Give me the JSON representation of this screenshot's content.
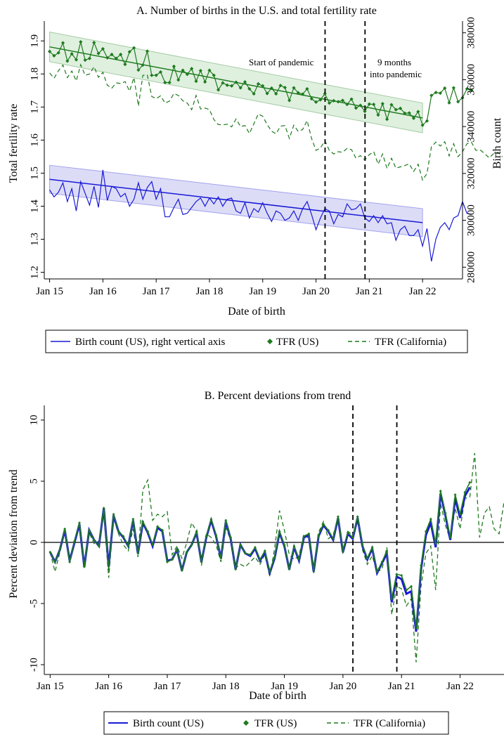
{
  "chart_data": [
    {
      "type": "line",
      "title": "A. Number of births in the U.S. and total fertility rate",
      "xlabel": "Date of birth",
      "ylabel": "Total fertility rate",
      "ylabel_right": "Birth count",
      "x_ticks": [
        "Jan 15",
        "Jan 16",
        "Jan 17",
        "Jan 18",
        "Jan 19",
        "Jan 20",
        "Jan 21",
        "Jan 22"
      ],
      "x_range": [
        -0.1,
        7.75
      ],
      "y_ticks": [
        "1.2",
        "1.3",
        "1.4",
        "1.5",
        "1.6",
        "1.7",
        "1.8",
        "1.9"
      ],
      "ylim": [
        1.18,
        1.96
      ],
      "y2_ticks": [
        "280000",
        "300000",
        "320000",
        "340000",
        "360000",
        "380000"
      ],
      "y2lim": [
        275000,
        385000
      ],
      "grid": false,
      "legend_position": "bottom",
      "annotations": [
        {
          "text": "Start of pandemic",
          "x": 5.17
        },
        {
          "text": "9 months",
          "x": 5.92
        },
        {
          "text": "into pandemic",
          "x": 5.92
        }
      ],
      "vlines": [
        5.17,
        5.92
      ],
      "series": [
        {
          "name": "Birth count (US), right vertical axis",
          "axis": "right",
          "color": "#1a1ad6",
          "x_start": 0,
          "x_step": 0.08333,
          "values": [
            313000,
            310000,
            312000,
            316000,
            308000,
            313500,
            304000,
            316500,
            311500,
            306500,
            314500,
            305500,
            321500,
            308500,
            314500,
            313500,
            310000,
            311500,
            306000,
            309000,
            316000,
            309000,
            314000,
            316500,
            309000,
            313500,
            301500,
            301500,
            305500,
            309000,
            302500,
            303000,
            305500,
            308000,
            309500,
            306000,
            309500,
            307000,
            310000,
            306000,
            309000,
            309500,
            304000,
            303000,
            307500,
            301000,
            305000,
            303500,
            307500,
            303000,
            299500,
            304000,
            303000,
            300000,
            301000,
            304000,
            300000,
            305000,
            308000,
            302500,
            296000,
            301000,
            305000,
            304000,
            298500,
            302500,
            301500,
            307000,
            304500,
            305000,
            307000,
            301000,
            299500,
            302000,
            299000,
            302000,
            298500,
            299000,
            291500,
            296000,
            297500,
            293500,
            293500,
            296000,
            289000,
            296500,
            282500,
            292000,
            297000,
            299000,
            296000,
            301000,
            302000,
            308000,
            303000,
            302500
          ]
        },
        {
          "name": "TFR (US)",
          "axis": "left",
          "color": "#1f7a1f",
          "marker": "diamond",
          "x_start": 0,
          "x_step": 0.08333,
          "values": [
            1.868,
            1.855,
            1.864,
            1.894,
            1.839,
            1.861,
            1.843,
            1.897,
            1.842,
            1.847,
            1.895,
            1.862,
            1.876,
            1.849,
            1.859,
            1.847,
            1.859,
            1.829,
            1.867,
            1.879,
            1.812,
            1.827,
            1.869,
            1.796,
            1.796,
            1.806,
            1.774,
            1.774,
            1.823,
            1.782,
            1.811,
            1.799,
            1.816,
            1.778,
            1.81,
            1.776,
            1.811,
            1.796,
            1.752,
            1.773,
            1.766,
            1.764,
            1.775,
            1.758,
            1.776,
            1.755,
            1.74,
            1.77,
            1.764,
            1.741,
            1.757,
            1.74,
            1.765,
            1.759,
            1.72,
            1.758,
            1.743,
            1.739,
            1.755,
            1.725,
            1.715,
            1.722,
            1.74,
            1.712,
            1.719,
            1.716,
            1.72,
            1.708,
            1.724,
            1.697,
            1.705,
            1.687,
            1.709,
            1.708,
            1.676,
            1.71,
            1.663,
            1.707,
            1.692,
            1.696,
            1.681,
            1.682,
            1.666,
            1.686,
            1.645,
            1.658,
            1.735,
            1.744,
            1.742,
            1.757,
            1.713,
            1.758,
            1.716,
            1.728,
            1.755,
            1.75
          ]
        },
        {
          "name": "TFR (California)",
          "axis": "left",
          "color": "#1f7a1f",
          "dash": "6,4",
          "x_start": 0,
          "x_step": 0.08333,
          "values": [
            1.803,
            1.787,
            1.81,
            1.827,
            1.789,
            1.809,
            1.779,
            1.828,
            1.796,
            1.8,
            1.822,
            1.79,
            1.805,
            1.766,
            1.757,
            1.773,
            1.771,
            1.777,
            1.748,
            1.789,
            1.703,
            1.796,
            1.797,
            1.732,
            1.725,
            1.734,
            1.712,
            1.718,
            1.741,
            1.735,
            1.719,
            1.712,
            1.692,
            1.735,
            1.694,
            1.697,
            1.692,
            1.662,
            1.647,
            1.646,
            1.648,
            1.64,
            1.664,
            1.641,
            1.644,
            1.62,
            1.649,
            1.679,
            1.672,
            1.647,
            1.627,
            1.619,
            1.642,
            1.644,
            1.605,
            1.645,
            1.626,
            1.632,
            1.659,
            1.605,
            1.569,
            1.576,
            1.598,
            1.569,
            1.558,
            1.565,
            1.563,
            1.575,
            1.571,
            1.545,
            1.553,
            1.54,
            1.556,
            1.565,
            1.527,
            1.558,
            1.514,
            1.545,
            1.515,
            1.519,
            1.523,
            1.528,
            1.505,
            1.527,
            1.479,
            1.499,
            1.58,
            1.594,
            1.582,
            1.595,
            1.552,
            1.589,
            1.55,
            1.565,
            1.589,
            1.594,
            1.569,
            1.57,
            1.559,
            1.546,
            1.559,
            1.563,
            1.549
          ]
        }
      ],
      "trend_lines": [
        {
          "name": "US TFR trend",
          "x": [
            0,
            7.0
          ],
          "y": [
            1.882,
            1.667
          ],
          "band": 0.045,
          "color": "#1f7a1f",
          "band_fill": "#dff0df"
        },
        {
          "name": "Birth count trend",
          "x": [
            0,
            7.0
          ],
          "y": [
            317500,
            299000
          ],
          "band": 6000,
          "color": "#1a1ad6",
          "band_fill": "#dcdcf7"
        }
      ]
    },
    {
      "type": "line",
      "title": "B. Percent deviations from trend",
      "xlabel": "Date of birth",
      "ylabel": "Percent deviation from trend",
      "x_ticks": [
        "Jan 15",
        "Jan 16",
        "Jan 17",
        "Jan 18",
        "Jan 19",
        "Jan 20",
        "Jan 21",
        "Jan 22"
      ],
      "x_range": [
        -0.1,
        7.75
      ],
      "y_ticks": [
        "-10",
        "-5",
        "0",
        "5",
        "10"
      ],
      "ylim": [
        -10.8,
        11.2
      ],
      "grid": false,
      "legend_position": "bottom",
      "hline": 0,
      "vlines": [
        5.17,
        5.92
      ],
      "series": [
        {
          "name": "Birth count (US)",
          "color": "#1a1ad6",
          "x_start": 0,
          "x_step": 0.08333,
          "values": [
            -0.8,
            -1.6,
            -0.6,
            1.0,
            -1.5,
            0.0,
            1.5,
            -2.0,
            1.0,
            0.2,
            -0.3,
            2.8,
            -2.0,
            2.2,
            0.9,
            0.4,
            -0.3,
            1.8,
            -0.9,
            1.6,
            0.8,
            -0.3,
            1.2,
            0.9,
            -1.5,
            -1.4,
            -0.6,
            -2.3,
            -0.8,
            -0.2,
            0.8,
            -1.6,
            0.4,
            1.8,
            0.5,
            -1.3,
            1.7,
            0.3,
            -2.2,
            -0.2,
            -0.9,
            -1.1,
            -0.5,
            -1.5,
            -0.8,
            -2.5,
            -1.3,
            0.8,
            -0.3,
            -2.2,
            -0.4,
            -1.5,
            0.4,
            0.6,
            -2.4,
            0.5,
            1.4,
            0.9,
            0.2,
            2.0,
            -0.8,
            0.7,
            0.3,
            2.0,
            -0.3,
            -1.4,
            -0.5,
            -2.5,
            -1.7,
            -0.9,
            -4.9,
            -2.8,
            -3.0,
            -4.2,
            -4.0,
            -7.3,
            -2.2,
            0.6,
            1.6,
            -0.4,
            4.0,
            2.2,
            0.2,
            3.6,
            2.0,
            3.8,
            4.5
          ]
        },
        {
          "name": "TFR (US)",
          "color": "#1f7a1f",
          "marker": "diamond",
          "x_start": 0,
          "x_step": 0.08333,
          "values": [
            -0.8,
            -1.6,
            -0.6,
            1.1,
            -1.6,
            0.1,
            1.6,
            -2.0,
            1.0,
            0.2,
            -0.3,
            2.8,
            -2.2,
            2.3,
            0.9,
            0.5,
            -0.3,
            1.9,
            -0.9,
            1.7,
            0.9,
            -0.2,
            1.3,
            1.0,
            -1.6,
            -1.4,
            -0.6,
            -2.3,
            -0.8,
            -0.2,
            0.9,
            -1.6,
            0.5,
            1.9,
            0.6,
            -1.3,
            1.8,
            0.4,
            -2.2,
            -0.2,
            -0.9,
            -1.0,
            -0.4,
            -1.4,
            -0.7,
            -2.4,
            -1.2,
            0.9,
            -0.2,
            -2.2,
            -0.3,
            -1.4,
            0.5,
            0.7,
            -2.3,
            0.6,
            1.5,
            1.0,
            0.3,
            2.1,
            -0.7,
            0.8,
            0.4,
            2.1,
            -0.2,
            -1.3,
            -0.4,
            -2.4,
            -1.6,
            -0.7,
            -4.6,
            -2.6,
            -2.7,
            -3.9,
            -3.6,
            -7.0,
            -1.9,
            0.9,
            1.9,
            -0.1,
            4.2,
            2.4,
            0.4,
            3.9,
            2.3,
            4.1,
            4.9
          ]
        },
        {
          "name": "TFR (California)",
          "color": "#1f7a1f",
          "dash": "6,4",
          "x_start": 0,
          "x_step": 0.08333,
          "values": [
            -0.8,
            -2.4,
            -0.8,
            0.9,
            -1.2,
            -0.2,
            1.4,
            -1.9,
            0.8,
            -0.1,
            0.1,
            2.3,
            -2.9,
            2.0,
            0.7,
            -0.2,
            -0.7,
            1.1,
            -1.2,
            4.3,
            5.1,
            1.8,
            2.3,
            2.1,
            2.5,
            -1.0,
            -0.3,
            -1.3,
            0.0,
            1.6,
            0.9,
            -1.9,
            0.7,
            0.4,
            -0.2,
            -1.6,
            1.2,
            0.2,
            -2.1,
            -1.8,
            -2.0,
            -1.6,
            -1.2,
            -1.8,
            -1.0,
            -2.8,
            -0.5,
            2.6,
            1.0,
            -1.0,
            -1.4,
            -1.1,
            0.7,
            0.3,
            -2.6,
            0.8,
            1.7,
            0.3,
            0.6,
            2.0,
            -1.0,
            0.9,
            0.6,
            1.7,
            -0.6,
            -1.8,
            -1.1,
            -2.4,
            -2.2,
            -0.4,
            -5.9,
            -3.6,
            -3.8,
            -5.2,
            -4.6,
            -9.8,
            -3.6,
            -0.9,
            -0.3,
            -3.9,
            3.2,
            1.4,
            0.2,
            2.8,
            1.1,
            3.6,
            3.7,
            7.3,
            0.4,
            2.4,
            2.9,
            1.1,
            0.7,
            3.3,
            3.3,
            1.6
          ]
        }
      ]
    }
  ]
}
